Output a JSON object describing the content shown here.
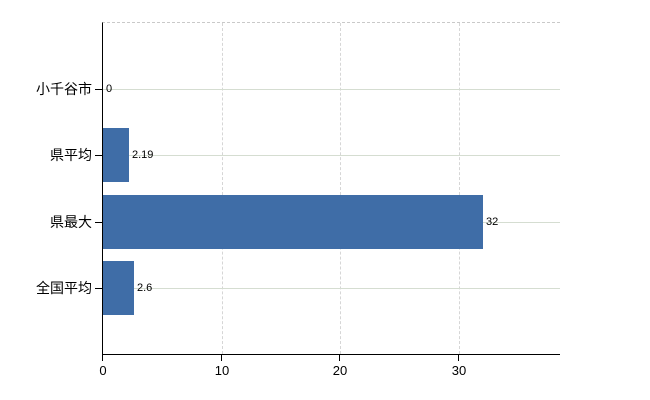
{
  "chart_data": {
    "type": "bar",
    "orientation": "horizontal",
    "title": "",
    "xlabel": "",
    "ylabel": "",
    "categories": [
      "小千谷市",
      "県平均",
      "県最大",
      "全国平均"
    ],
    "values": [
      0,
      2.19,
      32,
      2.6
    ],
    "value_labels": [
      "0",
      "2.19",
      "32",
      "2.6"
    ],
    "x_ticks": [
      0,
      10,
      20,
      30
    ],
    "x_tick_labels": [
      "0",
      "10",
      "20",
      "30"
    ],
    "xlim": [
      0,
      38.5
    ],
    "grid": {
      "vertical": "dashed",
      "horizontal": "solid",
      "top_border": "dashed"
    },
    "legend": "none",
    "colors": {
      "bar": "#3F6DA7",
      "axis": "#000000",
      "vertical_grid": "#d6d6d6",
      "horizontal_grid": "#d5ddd1",
      "top_border": "#c9c9c9",
      "text": "#000000",
      "background": "#ffffff"
    }
  }
}
